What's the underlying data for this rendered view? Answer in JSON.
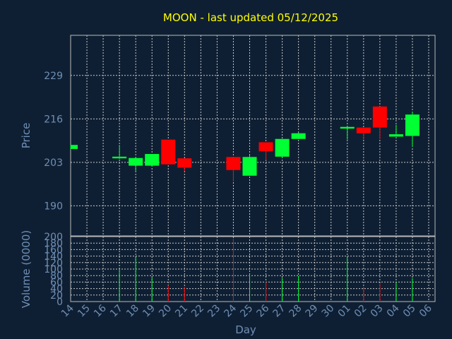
{
  "chart_data": {
    "type": "candlestick",
    "title": "MOON - last updated 05/12/2025",
    "xlabel": "Day",
    "x_ticks": [
      "14",
      "15",
      "16",
      "17",
      "18",
      "19",
      "20",
      "21",
      "22",
      "23",
      "24",
      "25",
      "26",
      "27",
      "28",
      "29",
      "30",
      "01",
      "02",
      "03",
      "04",
      "05",
      "06"
    ],
    "price_panel": {
      "ylabel": "Price",
      "y_ticks": [
        190,
        203,
        216,
        229
      ],
      "ylim": [
        181,
        241
      ],
      "grid": true
    },
    "volume_panel": {
      "ylabel": "Volume (0000)",
      "y_ticks": [
        0,
        20,
        40,
        60,
        80,
        100,
        120,
        140,
        160,
        180,
        200
      ],
      "ylim": [
        0,
        200
      ],
      "grid": true
    },
    "candles": [
      {
        "day": "14",
        "open": 207.0,
        "high": 208.2,
        "low": 207.0,
        "close": 208.2,
        "volume": 0
      },
      {
        "day": "17",
        "open": 204.2,
        "high": 208.2,
        "low": 204.0,
        "close": 204.7,
        "volume": 98
      },
      {
        "day": "18",
        "open": 202.0,
        "high": 204.6,
        "low": 200.4,
        "close": 204.3,
        "volume": 135
      },
      {
        "day": "19",
        "open": 202.0,
        "high": 205.5,
        "low": 201.7,
        "close": 205.5,
        "volume": 75
      },
      {
        "day": "20",
        "open": 209.8,
        "high": 209.8,
        "low": 202.4,
        "close": 202.4,
        "volume": 50
      },
      {
        "day": "21",
        "open": 204.2,
        "high": 204.2,
        "low": 200.4,
        "close": 201.4,
        "volume": 45
      },
      {
        "day": "24",
        "open": 204.6,
        "high": 204.6,
        "low": 197.3,
        "close": 200.7,
        "volume": 193
      },
      {
        "day": "25",
        "open": 199.0,
        "high": 205.1,
        "low": 199.0,
        "close": 204.6,
        "volume": 80
      },
      {
        "day": "26",
        "open": 209.0,
        "high": 209.0,
        "low": 203.7,
        "close": 206.3,
        "volume": 60
      },
      {
        "day": "27",
        "open": 204.7,
        "high": 210.0,
        "low": 204.6,
        "close": 210.0,
        "volume": 73
      },
      {
        "day": "28",
        "open": 210.0,
        "high": 211.9,
        "low": 210.0,
        "close": 211.7,
        "volume": 79
      },
      {
        "day": "01",
        "open": 213.1,
        "high": 213.6,
        "low": 209.8,
        "close": 213.6,
        "volume": 135
      },
      {
        "day": "02",
        "open": 213.4,
        "high": 213.4,
        "low": 209.8,
        "close": 211.7,
        "volume": 43
      },
      {
        "day": "03",
        "open": 219.7,
        "high": 219.7,
        "low": 210.0,
        "close": 213.4,
        "volume": 55
      },
      {
        "day": "04",
        "open": 210.7,
        "high": 214.2,
        "low": 210.7,
        "close": 211.4,
        "volume": 60
      },
      {
        "day": "05",
        "open": 210.9,
        "high": 218.1,
        "low": 207.6,
        "close": 217.3,
        "volume": 72
      }
    ]
  },
  "colors": {
    "background": "#0f1f33",
    "title": "#ffff00",
    "axis_text": "#6f8fb5",
    "up": "#00ff33",
    "down": "#ff0000",
    "grid": "#c8c8c8",
    "frame": "#b8b8b8"
  }
}
